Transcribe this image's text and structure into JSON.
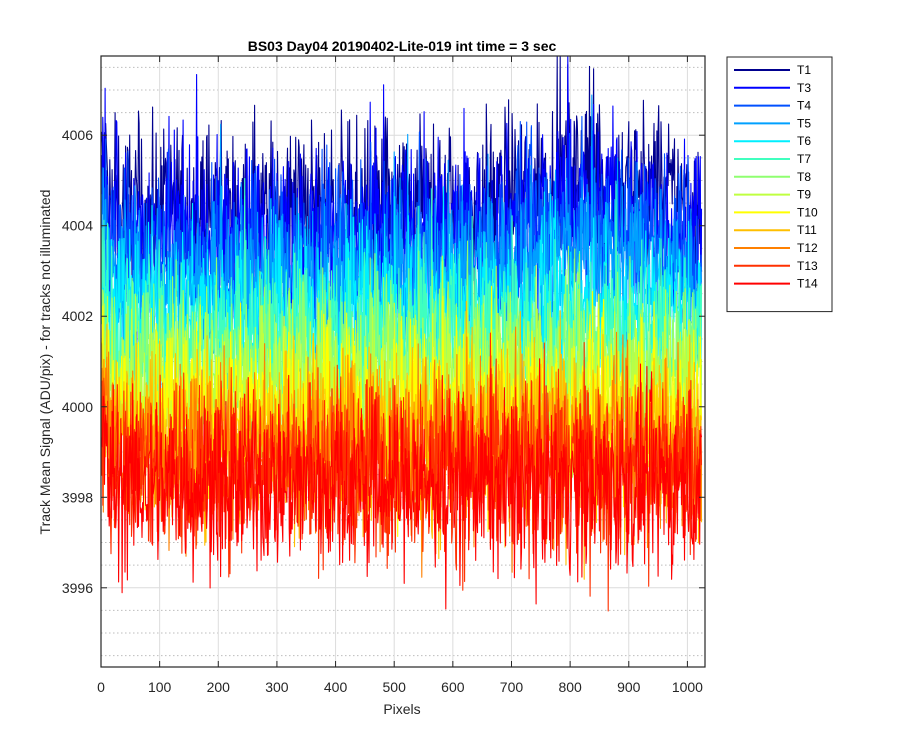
{
  "chart_data": {
    "type": "line",
    "title": "BS03 Day04 20190402-Lite-019 int time = 3 sec",
    "xlabel": "Pixels",
    "ylabel": "Track Mean Signal (ADU/pix) - for tracks not illuminated",
    "xlim": [
      0,
      1030
    ],
    "ylim": [
      3994.25,
      4007.75
    ],
    "x_ticks": [
      0,
      100,
      200,
      300,
      400,
      500,
      600,
      700,
      800,
      900,
      1000
    ],
    "y_ticks": [
      3996,
      3998,
      4000,
      4002,
      4004,
      4006
    ],
    "grid": true,
    "minor_grid_y": true,
    "legend_position": "outside-right",
    "series": [
      {
        "name": "T1",
        "color": "#00008f",
        "base": 4004.3
      },
      {
        "name": "T3",
        "color": "#0000ff",
        "base": 4003.8
      },
      {
        "name": "T4",
        "color": "#0050ff",
        "base": 4003.3
      },
      {
        "name": "T5",
        "color": "#00a0ff",
        "base": 4002.7
      },
      {
        "name": "T6",
        "color": "#00efff",
        "base": 4002.1
      },
      {
        "name": "T7",
        "color": "#40ffbf",
        "base": 4001.5
      },
      {
        "name": "T8",
        "color": "#8fff70",
        "base": 4000.9
      },
      {
        "name": "T9",
        "color": "#bfff40",
        "base": 4000.4
      },
      {
        "name": "T10",
        "color": "#ffff00",
        "base": 3999.9
      },
      {
        "name": "T11",
        "color": "#ffbf00",
        "base": 3999.4
      },
      {
        "name": "T12",
        "color": "#ff8000",
        "base": 3999.0
      },
      {
        "name": "T13",
        "color": "#ff3000",
        "base": 3998.7
      },
      {
        "name": "T14",
        "color": "#ff0000",
        "base": 3998.3
      }
    ],
    "n_points": 1024,
    "noise_amplitude": 1.3
  }
}
